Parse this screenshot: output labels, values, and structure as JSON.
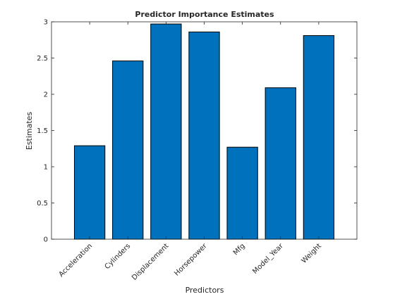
{
  "chart_data": {
    "type": "bar",
    "title": "Predictor Importance Estimates",
    "xlabel": "Predictors",
    "ylabel": "Estimates",
    "categories": [
      "Acceleration",
      "Cylinders",
      "Displacement",
      "Horsepower",
      "Mfg",
      "Model_Year",
      "Weight"
    ],
    "values": [
      1.29,
      2.46,
      2.97,
      2.86,
      1.27,
      2.09,
      2.81
    ],
    "ylim": [
      0,
      3
    ],
    "yticks": [
      0,
      0.5,
      1,
      1.5,
      2,
      2.5,
      3
    ],
    "ytick_labels": [
      "0",
      "0.5",
      "1",
      "1.5",
      "2",
      "2.5",
      "3"
    ],
    "bar_color": "#0072BD",
    "bar_edge_color": "#000000",
    "grid": false,
    "box": true
  }
}
